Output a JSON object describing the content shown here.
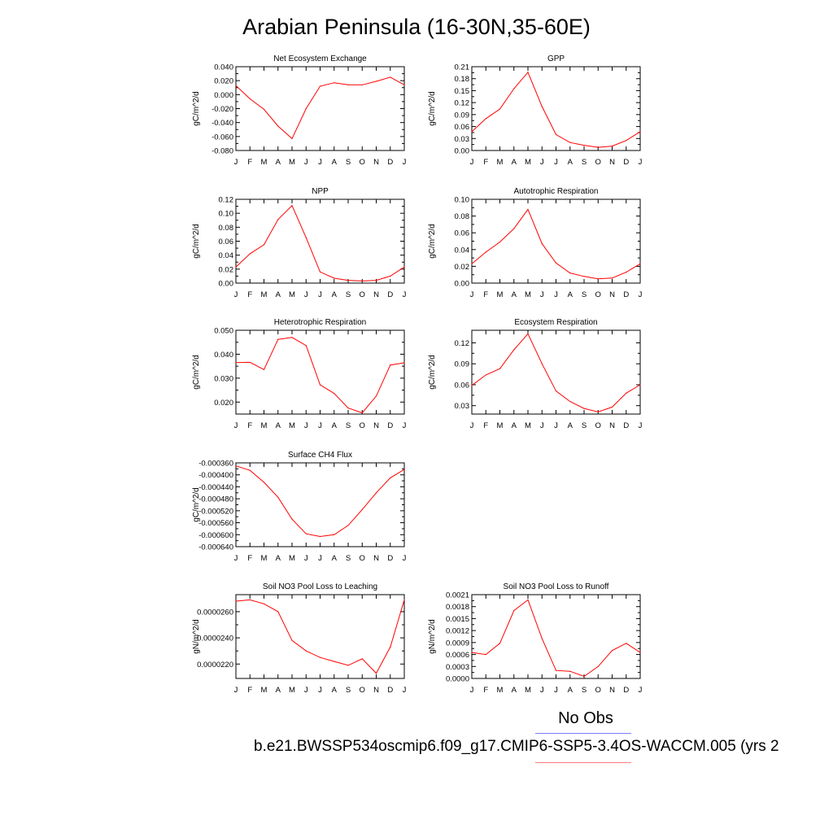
{
  "title": "Arabian Peninsula (16-30N,35-60E)",
  "legend": {
    "obs_label": "No Obs",
    "case_label": "b.e21.BWSSP534oscmip6.f09_g17.CMIP6-SSP5-3.4OS-WACCM.005 (yrs 2",
    "obs_color": "#7b7bff",
    "case_color": "#ff7b7b"
  },
  "chart_data": [
    {
      "type": "line",
      "title": "Net Ecosystem Exchange",
      "ylabel": "gC/m^2/d",
      "categories": [
        "J",
        "F",
        "M",
        "A",
        "M",
        "J",
        "J",
        "A",
        "S",
        "O",
        "N",
        "D",
        "J"
      ],
      "ylim": [
        -0.08,
        0.04
      ],
      "yticks": [
        "0.040",
        "0.020",
        "0.000",
        "-0.020",
        "-0.040",
        "-0.060",
        "-0.080"
      ],
      "series": [
        {
          "color": "#ff0000",
          "values": [
            0.013,
            -0.006,
            -0.021,
            -0.045,
            -0.063,
            -0.02,
            0.012,
            0.017,
            0.014,
            0.014,
            0.019,
            0.025,
            0.014
          ]
        }
      ]
    },
    {
      "type": "line",
      "title": "GPP",
      "ylabel": "gC/m^2/d",
      "categories": [
        "J",
        "F",
        "M",
        "A",
        "M",
        "J",
        "J",
        "A",
        "S",
        "O",
        "N",
        "D",
        "J"
      ],
      "ylim": [
        0.0,
        0.21
      ],
      "yticks": [
        "0.21",
        "0.18",
        "0.15",
        "0.12",
        "0.09",
        "0.06",
        "0.03",
        "0.00"
      ],
      "series": [
        {
          "color": "#ff0000",
          "values": [
            0.047,
            0.08,
            0.104,
            0.155,
            0.196,
            0.11,
            0.04,
            0.02,
            0.013,
            0.008,
            0.011,
            0.025,
            0.047
          ]
        }
      ]
    },
    {
      "type": "line",
      "title": "NPP",
      "ylabel": "gC/m^2/d",
      "categories": [
        "J",
        "F",
        "M",
        "A",
        "M",
        "J",
        "J",
        "A",
        "S",
        "O",
        "N",
        "D",
        "J"
      ],
      "ylim": [
        0.0,
        0.12
      ],
      "yticks": [
        "0.12",
        "0.10",
        "0.08",
        "0.06",
        "0.04",
        "0.02",
        "0.00"
      ],
      "series": [
        {
          "color": "#ff0000",
          "values": [
            0.023,
            0.042,
            0.055,
            0.091,
            0.111,
            0.065,
            0.016,
            0.007,
            0.004,
            0.003,
            0.004,
            0.01,
            0.023
          ]
        }
      ]
    },
    {
      "type": "line",
      "title": "Autotrophic Respiration",
      "ylabel": "gC/m^2/d",
      "categories": [
        "J",
        "F",
        "M",
        "A",
        "M",
        "J",
        "J",
        "A",
        "S",
        "O",
        "N",
        "D",
        "J"
      ],
      "ylim": [
        0.0,
        0.1
      ],
      "yticks": [
        "0.10",
        "0.08",
        "0.06",
        "0.04",
        "0.02",
        "0.00"
      ],
      "series": [
        {
          "color": "#ff0000",
          "values": [
            0.023,
            0.037,
            0.049,
            0.065,
            0.088,
            0.047,
            0.024,
            0.012,
            0.008,
            0.005,
            0.006,
            0.013,
            0.023
          ]
        }
      ]
    },
    {
      "type": "line",
      "title": "Heterotrophic Respiration",
      "ylabel": "gC/m^2/d",
      "categories": [
        "J",
        "F",
        "M",
        "A",
        "M",
        "J",
        "J",
        "A",
        "S",
        "O",
        "N",
        "D",
        "J"
      ],
      "ylim": [
        0.015,
        0.05
      ],
      "yticks": [
        "0.050",
        "0.040",
        "0.030",
        "0.020"
      ],
      "yticks_values": [
        0.05,
        0.04,
        0.03,
        0.02
      ],
      "series": [
        {
          "color": "#ff0000",
          "values": [
            0.0365,
            0.0366,
            0.0336,
            0.0462,
            0.047,
            0.0436,
            0.0272,
            0.0236,
            0.0175,
            0.0155,
            0.0225,
            0.0355,
            0.0364
          ]
        }
      ]
    },
    {
      "type": "line",
      "title": "Ecosystem Respiration",
      "ylabel": "gC/m^2/d",
      "categories": [
        "J",
        "F",
        "M",
        "A",
        "M",
        "J",
        "J",
        "A",
        "S",
        "O",
        "N",
        "D",
        "J"
      ],
      "ylim": [
        0.018,
        0.138
      ],
      "yticks": [
        "0.12",
        "0.09",
        "0.06",
        "0.03"
      ],
      "yticks_values": [
        0.12,
        0.09,
        0.06,
        0.03
      ],
      "series": [
        {
          "color": "#ff0000",
          "values": [
            0.059,
            0.074,
            0.083,
            0.11,
            0.133,
            0.09,
            0.051,
            0.036,
            0.026,
            0.021,
            0.028,
            0.048,
            0.06
          ]
        }
      ]
    },
    {
      "type": "line",
      "title": "Surface CH4 Flux",
      "ylabel": "gC/m^2/d",
      "categories": [
        "J",
        "F",
        "M",
        "A",
        "M",
        "J",
        "J",
        "A",
        "S",
        "O",
        "N",
        "D",
        "J"
      ],
      "ylim": [
        -0.00064,
        -0.00036
      ],
      "yticks": [
        "-0.000360",
        "-0.000400",
        "-0.000440",
        "-0.000480",
        "-0.000520",
        "-0.000560",
        "-0.000600",
        "-0.000640"
      ],
      "series": [
        {
          "color": "#ff0000",
          "values": [
            -0.00037,
            -0.000385,
            -0.000425,
            -0.000475,
            -0.000548,
            -0.000597,
            -0.000606,
            -0.0006,
            -0.000569,
            -0.000516,
            -0.00046,
            -0.00041,
            -0.000382
          ]
        }
      ]
    },
    {
      "type": "line",
      "title": "Soil NO3 Pool Loss to Leaching",
      "ylabel": "gN/m^2/d",
      "categories": [
        "J",
        "F",
        "M",
        "A",
        "M",
        "J",
        "J",
        "A",
        "S",
        "O",
        "N",
        "D",
        "J"
      ],
      "ylim": [
        2.09e-05,
        2.73e-05
      ],
      "yticks": [
        "0.0000260",
        "0.0000240",
        "0.0000220"
      ],
      "yticks_values": [
        2.6e-05,
        2.4e-05,
        2.2e-05
      ],
      "series": [
        {
          "color": "#ff0000",
          "values": [
            2.68e-05,
            2.69e-05,
            2.66e-05,
            2.6e-05,
            2.38e-05,
            2.3e-05,
            2.25e-05,
            2.22e-05,
            2.19e-05,
            2.24e-05,
            2.13e-05,
            2.33e-05,
            2.69e-05
          ]
        }
      ]
    },
    {
      "type": "line",
      "title": "Soil NO3 Pool Loss to Runoff",
      "ylabel": "gN/m^2/d",
      "categories": [
        "J",
        "F",
        "M",
        "A",
        "M",
        "J",
        "J",
        "A",
        "S",
        "O",
        "N",
        "D",
        "J"
      ],
      "ylim": [
        0.0,
        0.0021
      ],
      "yticks": [
        "0.0021",
        "0.0018",
        "0.0015",
        "0.0012",
        "0.0009",
        "0.0006",
        "0.0003",
        "0.0000"
      ],
      "series": [
        {
          "color": "#ff0000",
          "values": [
            0.00065,
            0.0006,
            0.00088,
            0.0017,
            0.00197,
            0.001,
            0.0002,
            0.00018,
            5e-05,
            0.0003,
            0.0007,
            0.00088,
            0.00065
          ]
        }
      ]
    }
  ]
}
